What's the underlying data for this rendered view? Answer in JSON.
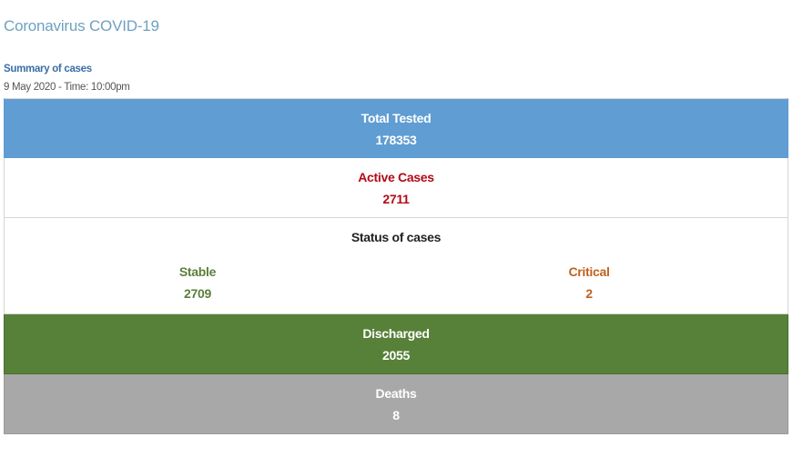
{
  "header": {
    "title": "Coronavirus COVID-19",
    "summary_label": "Summary of cases",
    "date_line": "9 May 2020 - Time: 10:00pm"
  },
  "stats": {
    "total_tested": {
      "label": "Total Tested",
      "value": "178353"
    },
    "active_cases": {
      "label": "Active Cases",
      "value": "2711"
    },
    "status": {
      "title": "Status of cases",
      "stable": {
        "label": "Stable",
        "value": "2709"
      },
      "critical": {
        "label": "Critical",
        "value": "2"
      }
    },
    "discharged": {
      "label": "Discharged",
      "value": "2055"
    },
    "deaths": {
      "label": "Deaths",
      "value": "8"
    }
  },
  "colors": {
    "tested": "#5f9dd3",
    "active": "#b30a16",
    "stable": "#5b7f3a",
    "critical": "#c1621e",
    "discharged": "#578038",
    "deaths": "#a8a8a8",
    "title": "#6ea1c1"
  }
}
